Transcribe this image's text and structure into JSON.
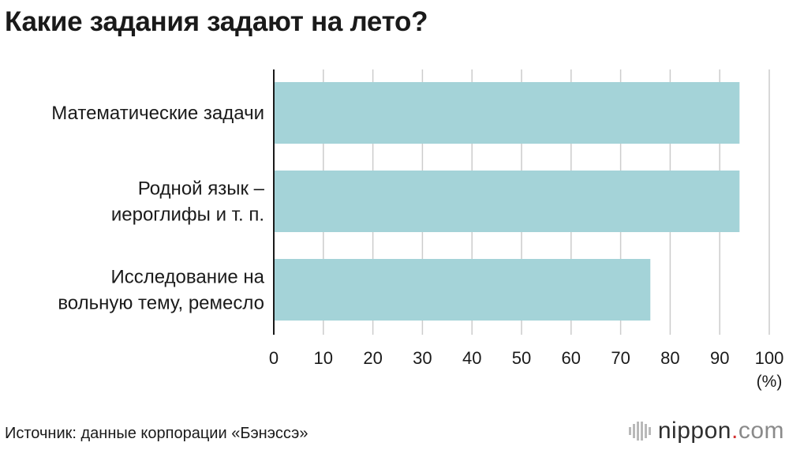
{
  "title": "Какие задания задают на лето?",
  "source": "Источник: данные корпорации «Бэнэссэ»",
  "brand": {
    "icon": "nippon-logo-icon",
    "name": "nippon",
    "dot": ".",
    "tld": "com"
  },
  "colors": {
    "bar": "#a4d3d8",
    "grid": "#cccccc",
    "axis": "#1a1a1a"
  },
  "chart_data": {
    "type": "bar",
    "orientation": "horizontal",
    "title": "Какие задания задают на лето?",
    "categories": [
      [
        "Математические задачи"
      ],
      [
        "Родной язык –",
        "иероглифы и т. п."
      ],
      [
        "Исследование на",
        "вольную тему, ремесло"
      ]
    ],
    "values": [
      94,
      94,
      76
    ],
    "xlim": [
      0,
      100
    ],
    "xticks": [
      0,
      10,
      20,
      30,
      40,
      50,
      60,
      70,
      80,
      90,
      100
    ],
    "xunit": "(%)",
    "grid": true
  }
}
